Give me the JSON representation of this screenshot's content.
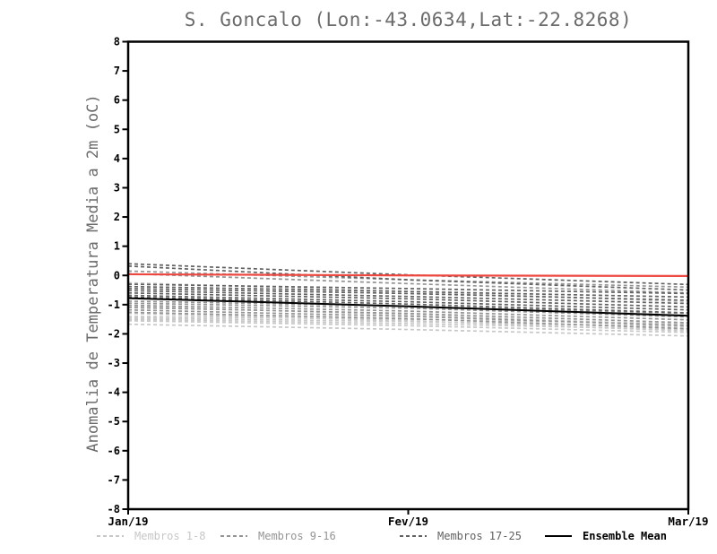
{
  "chart_data": {
    "type": "line",
    "title": "S. Goncalo (Lon:-43.0634,Lat:-22.8268)",
    "ylabel": "Anomalia de Temperatura Media a 2m (oC)",
    "xlabel": "",
    "x_ticks": [
      "Jan/19",
      "Fev/19",
      "Mar/19"
    ],
    "ylim": [
      -8,
      8
    ],
    "y_ticks": [
      8,
      7,
      6,
      5,
      4,
      3,
      2,
      1,
      0,
      -1,
      -2,
      -3,
      -4,
      -5,
      -6,
      -7,
      -8
    ],
    "grid": false,
    "legend_position": "bottom",
    "axis_color": "#000000",
    "title_color": "#6b6b6b",
    "legend": [
      {
        "label": "Membros 1-8",
        "color": "#c7c7c7",
        "style": "dashed"
      },
      {
        "label": "Membros 9-16",
        "color": "#949494",
        "style": "dashed"
      },
      {
        "label": "Membros 17-25",
        "color": "#616161",
        "style": "dashed"
      },
      {
        "label": "Ensemble Mean",
        "color": "#000000",
        "style": "solid"
      }
    ],
    "reference_line": {
      "name": "zero-anomaly-line",
      "color": "#ee4740",
      "values": [
        0.04,
        0.0,
        -0.02
      ]
    },
    "ensemble_mean": {
      "name": "ensemble-mean",
      "color": "#000000",
      "values": [
        -0.78,
        -1.06,
        -1.38
      ]
    },
    "member_groups": [
      {
        "name": "Membros 1-8",
        "color": "#c7c7c7",
        "members": [
          [
            -0.25,
            -0.55,
            -0.9
          ],
          [
            -1.05,
            -1.35,
            -1.7
          ],
          [
            -1.3,
            -1.55,
            -1.9
          ],
          [
            -1.4,
            -1.5,
            -1.65
          ],
          [
            -1.45,
            -1.58,
            -1.75
          ],
          [
            -1.5,
            -1.65,
            -1.85
          ],
          [
            -1.55,
            -1.72,
            -1.95
          ],
          [
            -1.67,
            -1.85,
            -2.07
          ]
        ]
      },
      {
        "name": "Membros 9-16",
        "color": "#949494",
        "members": [
          [
            0.15,
            -0.15,
            -0.4
          ],
          [
            0.06,
            -0.28,
            -0.6
          ],
          [
            -0.88,
            -1.05,
            -1.3
          ],
          [
            -0.95,
            -1.12,
            -1.42
          ],
          [
            -1.02,
            -1.22,
            -1.52
          ],
          [
            -1.1,
            -1.3,
            -1.62
          ],
          [
            -1.18,
            -1.4,
            -1.72
          ],
          [
            -1.26,
            -1.48,
            -1.82
          ]
        ]
      },
      {
        "name": "Membros 17-25",
        "color": "#616161",
        "members": [
          [
            0.4,
            0.02,
            -0.31
          ],
          [
            0.32,
            -0.15,
            -0.5
          ],
          [
            -0.3,
            -0.45,
            -0.62
          ],
          [
            -0.38,
            -0.55,
            -0.74
          ],
          [
            -0.45,
            -0.62,
            -0.85
          ],
          [
            -0.52,
            -0.72,
            -0.96
          ],
          [
            -0.6,
            -0.8,
            -1.08
          ],
          [
            -0.68,
            -0.9,
            -1.18
          ],
          [
            -0.74,
            -0.98,
            -1.28
          ]
        ]
      }
    ]
  }
}
